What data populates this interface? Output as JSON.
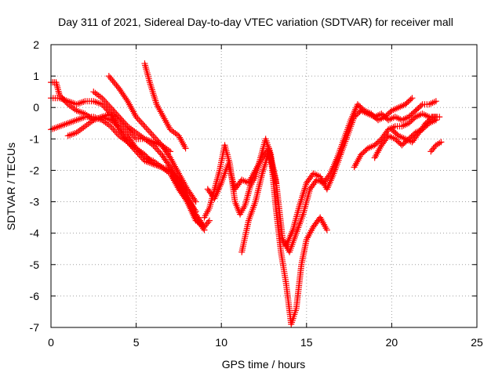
{
  "chart_data": {
    "type": "scatter",
    "title": "Day 311 of 2021, Sidereal Day-to-day VTEC variation (SDTVAR) for receiver mall",
    "xlabel": "GPS time / hours",
    "ylabel": "SDTVAR / TECUs",
    "xlim": [
      0,
      25
    ],
    "ylim": [
      -7,
      2
    ],
    "xticks": [
      "0",
      "5",
      "10",
      "15",
      "20",
      "25"
    ],
    "yticks": [
      "2",
      "1",
      "0",
      "-1",
      "-2",
      "-3",
      "-4",
      "-5",
      "-6",
      "-7"
    ],
    "grid": true,
    "marker": "+",
    "color": "#ff0000",
    "series": [
      {
        "x": [
          0.0,
          0.5,
          1.0,
          1.5,
          2.0,
          2.5,
          3.0,
          3.5,
          4.0,
          4.5,
          5.0,
          5.5,
          6.0,
          6.5,
          7.0,
          7.5,
          8.0,
          8.5,
          9.0,
          9.3
        ],
        "y": [
          0.3,
          0.3,
          0.2,
          0.1,
          0.2,
          0.2,
          0.1,
          -0.2,
          -0.7,
          -1.1,
          -1.3,
          -1.5,
          -1.8,
          -1.9,
          -2.0,
          -2.3,
          -2.8,
          -3.4,
          -3.8,
          -3.6
        ]
      },
      {
        "x": [
          0.0,
          0.5,
          1.0,
          1.5,
          2.0,
          2.5,
          3.0,
          3.5,
          4.0,
          4.5,
          5.0,
          5.5,
          6.0,
          6.5,
          7.0,
          7.5,
          8.0,
          8.5,
          9.0
        ],
        "y": [
          -0.7,
          -0.6,
          -0.5,
          -0.4,
          -0.3,
          -0.3,
          -0.4,
          -0.6,
          -0.9,
          -1.1,
          -1.4,
          -1.7,
          -1.8,
          -1.9,
          -2.1,
          -2.5,
          -3.0,
          -3.5,
          -3.9
        ]
      },
      {
        "x": [
          0.0,
          0.3,
          0.5,
          1.0,
          1.5,
          2.0,
          2.5,
          3.0,
          3.5,
          4.0,
          4.5,
          5.0,
          5.5,
          6.0,
          6.5,
          7.0
        ],
        "y": [
          0.8,
          0.8,
          0.4,
          0.1,
          -0.1,
          -0.2,
          -0.4,
          -0.3,
          -0.2,
          -0.4,
          -0.7,
          -1.0,
          -1.0,
          -1.1,
          -1.2,
          -1.4
        ]
      },
      {
        "x": [
          1.0,
          1.5,
          2.0,
          2.5,
          3.0,
          3.5,
          4.0,
          4.5,
          5.0,
          5.5,
          6.0,
          6.5,
          7.0,
          7.5,
          8.0,
          8.5,
          9.0
        ],
        "y": [
          -0.9,
          -0.8,
          -0.6,
          -0.4,
          -0.3,
          -0.4,
          -0.6,
          -0.9,
          -1.3,
          -1.6,
          -1.7,
          -1.9,
          -2.1,
          -2.6,
          -3.0,
          -3.6,
          -3.8
        ]
      },
      {
        "x": [
          2.5,
          3.0,
          3.5,
          4.0,
          4.5,
          5.0,
          5.5,
          6.0,
          6.5,
          7.0,
          7.5,
          8.0,
          8.5
        ],
        "y": [
          0.5,
          0.3,
          0.0,
          -0.3,
          -0.6,
          -0.8,
          -1.0,
          -1.2,
          -1.5,
          -1.9,
          -2.4,
          -2.9,
          -3.3
        ]
      },
      {
        "x": [
          3.4,
          4.0,
          4.5,
          5.0,
          5.5,
          6.0,
          6.5,
          7.0,
          7.5,
          8.0,
          8.5
        ],
        "y": [
          1.0,
          0.6,
          0.2,
          -0.3,
          -0.6,
          -0.9,
          -1.2,
          -1.6,
          -2.1,
          -2.6,
          -3.0
        ]
      },
      {
        "x": [
          5.5,
          5.8,
          6.2,
          6.6,
          7.0,
          7.5,
          7.9
        ],
        "y": [
          1.4,
          0.8,
          0.1,
          -0.3,
          -0.7,
          -0.9,
          -1.3
        ]
      },
      {
        "x": [
          9.0,
          9.3,
          9.6,
          9.9,
          10.2,
          10.5,
          10.8,
          11.1,
          11.4,
          11.7,
          12.0,
          12.3,
          12.6,
          12.9,
          13.2,
          13.5,
          13.8,
          14.1,
          14.4,
          14.7,
          15.0,
          15.4,
          15.8,
          16.2
        ],
        "y": [
          -3.5,
          -3.2,
          -2.6,
          -2.0,
          -1.2,
          -1.8,
          -3.0,
          -3.4,
          -3.1,
          -2.5,
          -2.2,
          -1.6,
          -1.0,
          -1.5,
          -3.2,
          -4.6,
          -5.6,
          -6.9,
          -6.4,
          -5.0,
          -4.2,
          -3.8,
          -3.5,
          -3.9
        ]
      },
      {
        "x": [
          9.2,
          9.6,
          10.0,
          10.4,
          10.8,
          11.2,
          11.6,
          12.0,
          12.4,
          12.8,
          13.2,
          13.6,
          14.0,
          14.4,
          14.8,
          15.2,
          15.6,
          16.0,
          16.4,
          16.8,
          17.2,
          17.6,
          18.0,
          18.4,
          18.8,
          19.2,
          19.6,
          20.0,
          20.4,
          20.8,
          21.2
        ],
        "y": [
          -2.6,
          -2.9,
          -2.4,
          -1.8,
          -2.6,
          -2.3,
          -2.4,
          -2.0,
          -1.6,
          -1.3,
          -2.3,
          -4.2,
          -4.6,
          -4.0,
          -3.4,
          -2.6,
          -2.3,
          -2.4,
          -2.1,
          -1.6,
          -1.0,
          -0.4,
          0.1,
          -0.1,
          -0.2,
          -0.4,
          -0.3,
          -0.1,
          0.0,
          0.1,
          0.3
        ]
      },
      {
        "x": [
          11.2,
          11.6,
          12.0,
          12.4,
          12.8,
          13.2
        ],
        "y": [
          -4.6,
          -3.6,
          -3.0,
          -2.1,
          -1.4,
          -2.4
        ]
      },
      {
        "x": [
          13.8,
          14.2,
          14.6,
          15.0,
          15.4,
          15.8,
          16.2,
          16.6,
          17.0,
          17.4,
          17.8,
          18.2,
          18.6,
          19.0,
          19.4,
          19.8,
          20.2,
          20.6,
          21.0,
          21.4,
          21.8,
          22.2,
          22.6
        ],
        "y": [
          -4.4,
          -3.9,
          -3.1,
          -2.4,
          -2.1,
          -2.2,
          -2.6,
          -2.1,
          -1.5,
          -0.9,
          -0.3,
          -0.1,
          -0.2,
          -0.3,
          -0.2,
          -0.4,
          -0.3,
          -0.4,
          -0.3,
          -0.1,
          0.1,
          0.1,
          0.2
        ]
      },
      {
        "x": [
          17.8,
          18.2,
          18.6,
          19.0,
          19.4,
          19.8,
          20.2,
          20.6,
          21.0,
          21.4,
          21.8,
          22.2,
          22.6
        ],
        "y": [
          -1.9,
          -1.5,
          -1.3,
          -1.2,
          -1.0,
          -0.7,
          -0.6,
          -0.6,
          -0.5,
          -0.3,
          -0.2,
          -0.3,
          -0.3
        ]
      },
      {
        "x": [
          19.0,
          19.4,
          19.8,
          20.2,
          20.6,
          21.0,
          21.4,
          21.8,
          22.2,
          22.6
        ],
        "y": [
          -1.6,
          -1.2,
          -0.9,
          -1.0,
          -1.2,
          -1.0,
          -0.8,
          -0.7,
          -0.5,
          -0.4
        ]
      },
      {
        "x": [
          20.0,
          20.4,
          20.8,
          21.2,
          21.6,
          22.0,
          22.4,
          22.8
        ],
        "y": [
          -0.7,
          -0.9,
          -1.0,
          -1.1,
          -0.8,
          -0.5,
          -0.3,
          -0.3
        ]
      },
      {
        "x": [
          22.3,
          22.6,
          22.9
        ],
        "y": [
          -1.4,
          -1.2,
          -1.1
        ]
      }
    ]
  }
}
